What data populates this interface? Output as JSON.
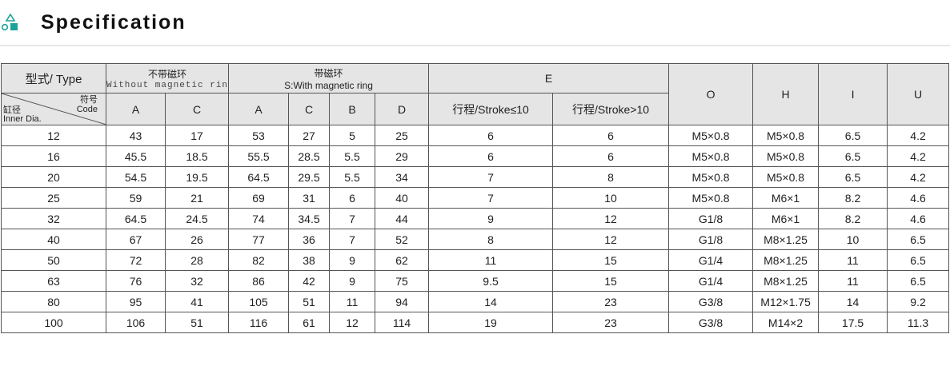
{
  "header": {
    "title": "Specification",
    "logo_icon": "shapes-icon",
    "accent": "#1aa39a"
  },
  "table": {
    "type_label": "型式/ Type",
    "group_without": {
      "cn": "不带磁环",
      "en": "Without magnetic ring"
    },
    "group_with": {
      "cn": "带磁环",
      "en": "S:With magnetic ring"
    },
    "group_e": "E",
    "code_cn": "符号",
    "code_en": "Code",
    "inner_cn": "缸径",
    "inner_en": "Inner Dia.",
    "cols": [
      "A",
      "C",
      "A",
      "C",
      "B",
      "D",
      "行程/Stroke≤10",
      "行程/Stroke>10",
      "O",
      "H",
      "I",
      "U"
    ],
    "rows": [
      [
        "12",
        "43",
        "17",
        "53",
        "27",
        "5",
        "25",
        "6",
        "6",
        "M5×0.8",
        "M5×0.8",
        "6.5",
        "4.2"
      ],
      [
        "16",
        "45.5",
        "18.5",
        "55.5",
        "28.5",
        "5.5",
        "29",
        "6",
        "6",
        "M5×0.8",
        "M5×0.8",
        "6.5",
        "4.2"
      ],
      [
        "20",
        "54.5",
        "19.5",
        "64.5",
        "29.5",
        "5.5",
        "34",
        "7",
        "8",
        "M5×0.8",
        "M5×0.8",
        "6.5",
        "4.2"
      ],
      [
        "25",
        "59",
        "21",
        "69",
        "31",
        "6",
        "40",
        "7",
        "10",
        "M5×0.8",
        "M6×1",
        "8.2",
        "4.6"
      ],
      [
        "32",
        "64.5",
        "24.5",
        "74",
        "34.5",
        "7",
        "44",
        "9",
        "12",
        "G1/8",
        "M6×1",
        "8.2",
        "4.6"
      ],
      [
        "40",
        "67",
        "26",
        "77",
        "36",
        "7",
        "52",
        "8",
        "12",
        "G1/8",
        "M8×1.25",
        "10",
        "6.5"
      ],
      [
        "50",
        "72",
        "28",
        "82",
        "38",
        "9",
        "62",
        "11",
        "15",
        "G1/4",
        "M8×1.25",
        "11",
        "6.5"
      ],
      [
        "63",
        "76",
        "32",
        "86",
        "42",
        "9",
        "75",
        "9.5",
        "15",
        "G1/4",
        "M8×1.25",
        "11",
        "6.5"
      ],
      [
        "80",
        "95",
        "41",
        "105",
        "51",
        "11",
        "94",
        "14",
        "23",
        "G3/8",
        "M12×1.75",
        "14",
        "9.2"
      ],
      [
        "100",
        "106",
        "51",
        "116",
        "61",
        "12",
        "114",
        "19",
        "23",
        "G3/8",
        "M14×2",
        "17.5",
        "11.3"
      ]
    ]
  }
}
